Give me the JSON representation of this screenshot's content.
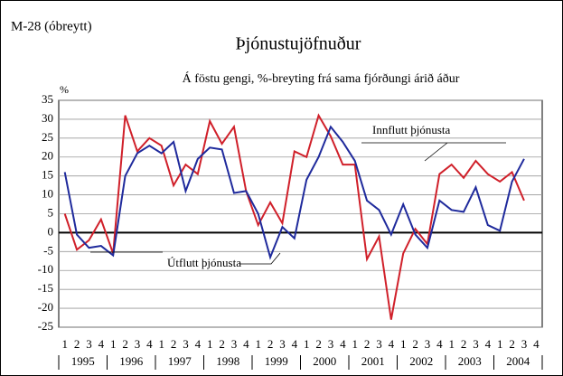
{
  "chart_data": {
    "type": "line",
    "code": "M-28 (óbreytt)",
    "title": "Þjónustujöfnuður",
    "subtitle": "Á föstu gengi, %-breyting frá sama fjórðungi árið áður",
    "y_label": "%",
    "categories": [
      "1",
      "2",
      "3",
      "4",
      "1",
      "2",
      "3",
      "4",
      "1",
      "2",
      "3",
      "4",
      "1",
      "2",
      "3",
      "4",
      "1",
      "2",
      "3",
      "4",
      "1",
      "2",
      "3",
      "4",
      "1",
      "2",
      "3",
      "4",
      "1",
      "2",
      "3",
      "4",
      "1",
      "2",
      "3",
      "4",
      "1",
      "2",
      "3",
      "4"
    ],
    "years": [
      "1995",
      "1996",
      "1997",
      "1998",
      "1999",
      "2000",
      "2001",
      "2002",
      "2003",
      "2004"
    ],
    "series": [
      {
        "name": "Innflutt þjónusta",
        "color": "#d0202a",
        "values": [
          5,
          -4.5,
          -2,
          3.5,
          -5.5,
          31,
          21.5,
          25,
          23,
          12.5,
          18,
          15.5,
          29.5,
          23.5,
          28,
          11,
          2,
          8,
          2.5,
          21.5,
          20,
          31,
          25.5,
          18,
          18,
          -7,
          -1,
          -23,
          -5.5,
          1,
          -3,
          15.5,
          18,
          14.5,
          19,
          15.5,
          13.5,
          16,
          8.5,
          null
        ]
      },
      {
        "name": "Útflutt þjónusta",
        "color": "#1f2a9c",
        "values": [
          16,
          -0.5,
          -4,
          -3.5,
          -6,
          15,
          21,
          23,
          21,
          24,
          11,
          19.5,
          22.5,
          22,
          10.5,
          11,
          5,
          -6.5,
          1.5,
          -1.5,
          14,
          20,
          28,
          24,
          19,
          8.5,
          6,
          -0.5,
          7.5,
          -0.5,
          -4,
          8.5,
          6,
          5.5,
          12,
          2,
          0.5,
          13.5,
          19.5,
          null
        ]
      }
    ],
    "ylim": [
      -25,
      35
    ],
    "yticks": [
      -25,
      -20,
      -15,
      -10,
      -5,
      0,
      5,
      10,
      15,
      20,
      25,
      30,
      35
    ],
    "grid": true
  }
}
